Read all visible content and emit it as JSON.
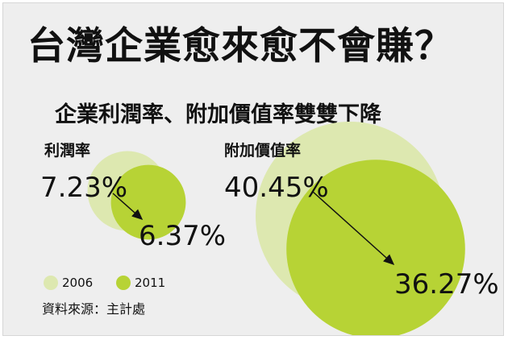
{
  "title": "台灣企業愈來愈不會賺？",
  "subtitle": "企業利潤率、附加價值率雙雙下降",
  "source": "資料來源：主計處",
  "colors": {
    "y2006": "#dde8b0",
    "y2011": "#b7d335",
    "background": "#eeeeee"
  },
  "chart_data": {
    "type": "bubble",
    "legend": [
      "2006",
      "2011"
    ],
    "legend_placement": "bottom-left",
    "series": [
      {
        "name": "2006",
        "values": [
          7.23,
          40.45
        ]
      },
      {
        "name": "2011",
        "values": [
          6.37,
          36.27
        ]
      }
    ],
    "groups": [
      {
        "label": "利潤率",
        "values": [
          "7.23%",
          "6.37%"
        ]
      },
      {
        "label": "附加價值率",
        "values": [
          "40.45%",
          "36.27%"
        ]
      }
    ]
  }
}
